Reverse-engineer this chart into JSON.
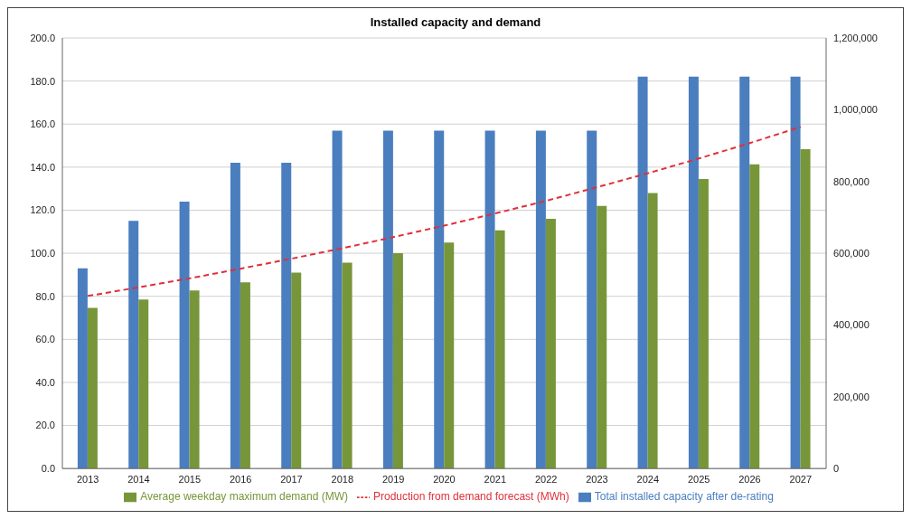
{
  "chart_data": {
    "type": "bar",
    "title": "Installed capacity and demand",
    "categories": [
      "2013",
      "2014",
      "2015",
      "2016",
      "2017",
      "2018",
      "2019",
      "2020",
      "2021",
      "2022",
      "2023",
      "2024",
      "2025",
      "2026",
      "2027"
    ],
    "series": [
      {
        "name": "Total installed capacity after de-rating",
        "color": "#4a7ebf",
        "values": [
          93,
          115,
          124,
          142,
          142,
          157,
          157,
          157,
          157,
          157,
          157,
          182,
          182,
          182,
          182
        ]
      },
      {
        "name": "Average weekday maximum demand (MW)",
        "color": "#77963a",
        "values": [
          74.6,
          78.5,
          82.7,
          86.5,
          91,
          95.6,
          100,
          105,
          110.6,
          116,
          122,
          128,
          134.5,
          141.3,
          148.3
        ]
      },
      {
        "name": "Production from demand forecast (MWh)",
        "type": "line",
        "axis": "y2",
        "color": "#e0303a",
        "line_style": "dashed",
        "marker": "none",
        "values": [
          481000,
          505000,
          530000,
          557000,
          585000,
          614000,
          645000,
          677000,
          711000,
          746000,
          784000,
          823000,
          864000,
          907000,
          952000
        ]
      }
    ],
    "ylim": [
      0,
      200
    ],
    "yticks": [
      {
        "value": 0,
        "label": "0.0"
      },
      {
        "value": 20,
        "label": "20.0"
      },
      {
        "value": 40,
        "label": "40.0"
      },
      {
        "value": 60,
        "label": "60.0"
      },
      {
        "value": 80,
        "label": "80.0"
      },
      {
        "value": 100,
        "label": "100.0"
      },
      {
        "value": 120,
        "label": "120.0"
      },
      {
        "value": 140,
        "label": "140.0"
      },
      {
        "value": 160,
        "label": "160.0"
      },
      {
        "value": 180,
        "label": "180.0"
      },
      {
        "value": 200,
        "label": "200.0"
      }
    ],
    "y2lim": [
      0,
      1200000
    ],
    "y2ticks": [
      {
        "value": 0,
        "label": "0"
      },
      {
        "value": 200000,
        "label": "200,000"
      },
      {
        "value": 400000,
        "label": "400,000"
      },
      {
        "value": 600000,
        "label": "600,000"
      },
      {
        "value": 800000,
        "label": "800,000"
      },
      {
        "value": 1000000,
        "label": "1,000,000"
      },
      {
        "value": 1200000,
        "label": "1,200,000"
      }
    ],
    "grid": "y",
    "legend": "bottom"
  }
}
